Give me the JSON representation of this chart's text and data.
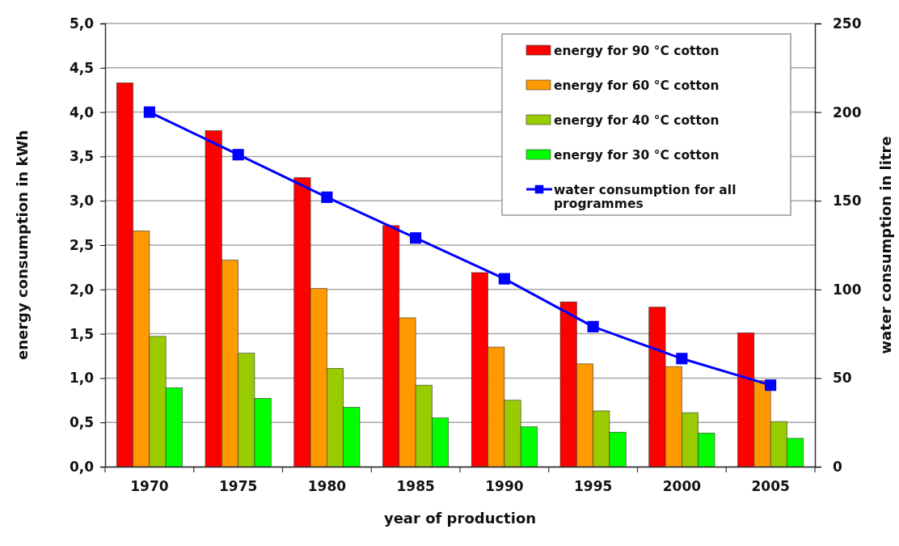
{
  "chart_data": {
    "type": "bar",
    "categories": [
      "1970",
      "1975",
      "1980",
      "1985",
      "1990",
      "1995",
      "2000",
      "2005"
    ],
    "xlabel": "year of production",
    "ylabel": "energy consumption in kWh",
    "y2label": "water consumption in litre",
    "series": [
      {
        "name": "energy for 90 °C cotton",
        "color": "#ff0000",
        "values": [
          4.33,
          3.79,
          3.26,
          2.72,
          2.19,
          1.86,
          1.8,
          1.51
        ]
      },
      {
        "name": "energy for 60 °C cotton",
        "color": "#ff9900",
        "values": [
          2.66,
          2.33,
          2.01,
          1.68,
          1.35,
          1.16,
          1.13,
          0.97
        ]
      },
      {
        "name": "energy for 40 °C cotton",
        "color": "#99cc00",
        "values": [
          1.47,
          1.28,
          1.11,
          0.92,
          0.75,
          0.63,
          0.61,
          0.51
        ]
      },
      {
        "name": "energy for 30 °C cotton",
        "color": "#00ff00",
        "values": [
          0.89,
          0.77,
          0.67,
          0.55,
          0.45,
          0.39,
          0.38,
          0.32
        ]
      },
      {
        "name": "water consumption for all programmes",
        "type": "line",
        "axis": "y2",
        "color": "#0000ff",
        "marker": "square",
        "values": [
          200,
          176,
          152,
          129,
          106,
          79,
          61,
          46
        ]
      }
    ],
    "ylim": [
      0,
      5
    ],
    "yticks": [
      {
        "value": 0,
        "label": "0,0"
      },
      {
        "value": 0.5,
        "label": "0,5"
      },
      {
        "value": 1,
        "label": "1,0"
      },
      {
        "value": 1.5,
        "label": "1,5"
      },
      {
        "value": 2,
        "label": "2,0"
      },
      {
        "value": 2.5,
        "label": "2,5"
      },
      {
        "value": 3,
        "label": "3,0"
      },
      {
        "value": 3.5,
        "label": "3,5"
      },
      {
        "value": 4,
        "label": "4,0"
      },
      {
        "value": 4.5,
        "label": "4,5"
      },
      {
        "value": 5,
        "label": "5,0"
      }
    ],
    "y2lim": [
      0,
      250
    ],
    "y2ticks": [
      0,
      50,
      100,
      150,
      200,
      250
    ],
    "grid": "y",
    "legend": "top right"
  }
}
